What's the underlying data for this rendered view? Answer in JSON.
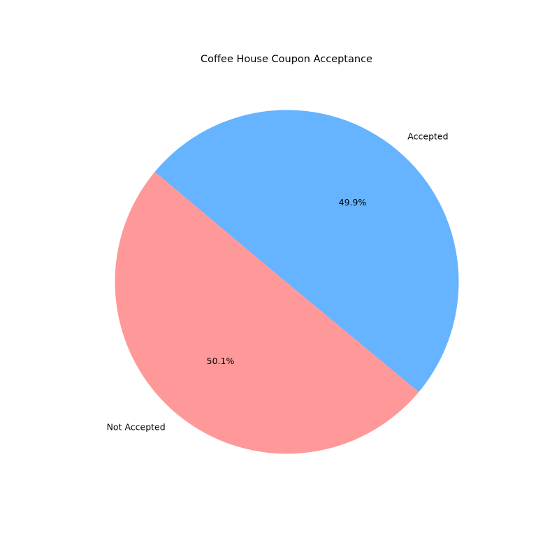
{
  "chart_data": {
    "type": "pie",
    "title": "Coffee House Coupon Acceptance",
    "labels": [
      "Not Accepted",
      "Accepted"
    ],
    "values": [
      50.1,
      49.9
    ],
    "percent_labels": [
      "50.1%",
      "49.9%"
    ],
    "colors": [
      "#ff9999",
      "#66b3ff"
    ],
    "start_angle_deg": 140,
    "direction": "counterclockwise"
  }
}
